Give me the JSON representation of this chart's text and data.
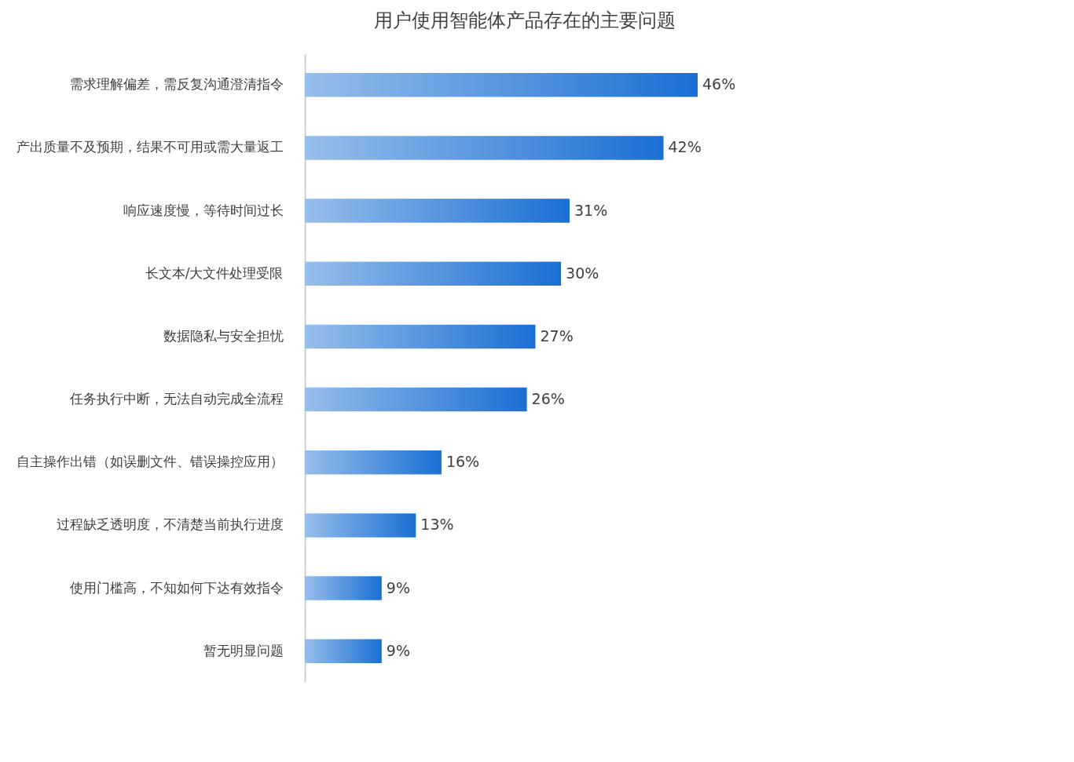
{
  "chart_data": {
    "type": "bar",
    "orientation": "horizontal",
    "title": "用户使用智能体产品存在的主要问题",
    "categories": [
      "需求理解偏差，需反复沟通澄清指令",
      "产出质量不及预期，结果不可用或需大量返工",
      "响应速度慢，等待时间过长",
      "长文本/大文件处理受限",
      "数据隐私与安全担忧",
      "任务执行中断，无法自动完成全流程",
      "自主操作出错（如误删文件、错误操控应用）",
      "过程缺乏透明度，不清楚当前执行进度",
      "使用门槛高，不知如何下达有效指令",
      "暂无明显问题"
    ],
    "values": [
      46,
      42,
      31,
      30,
      27,
      26,
      16,
      13,
      9,
      9
    ],
    "value_labels": [
      "46%",
      "42%",
      "31%",
      "30%",
      "27%",
      "26%",
      "16%",
      "13%",
      "9%",
      "9%"
    ],
    "color": "#1a6fd4",
    "grid": false
  }
}
